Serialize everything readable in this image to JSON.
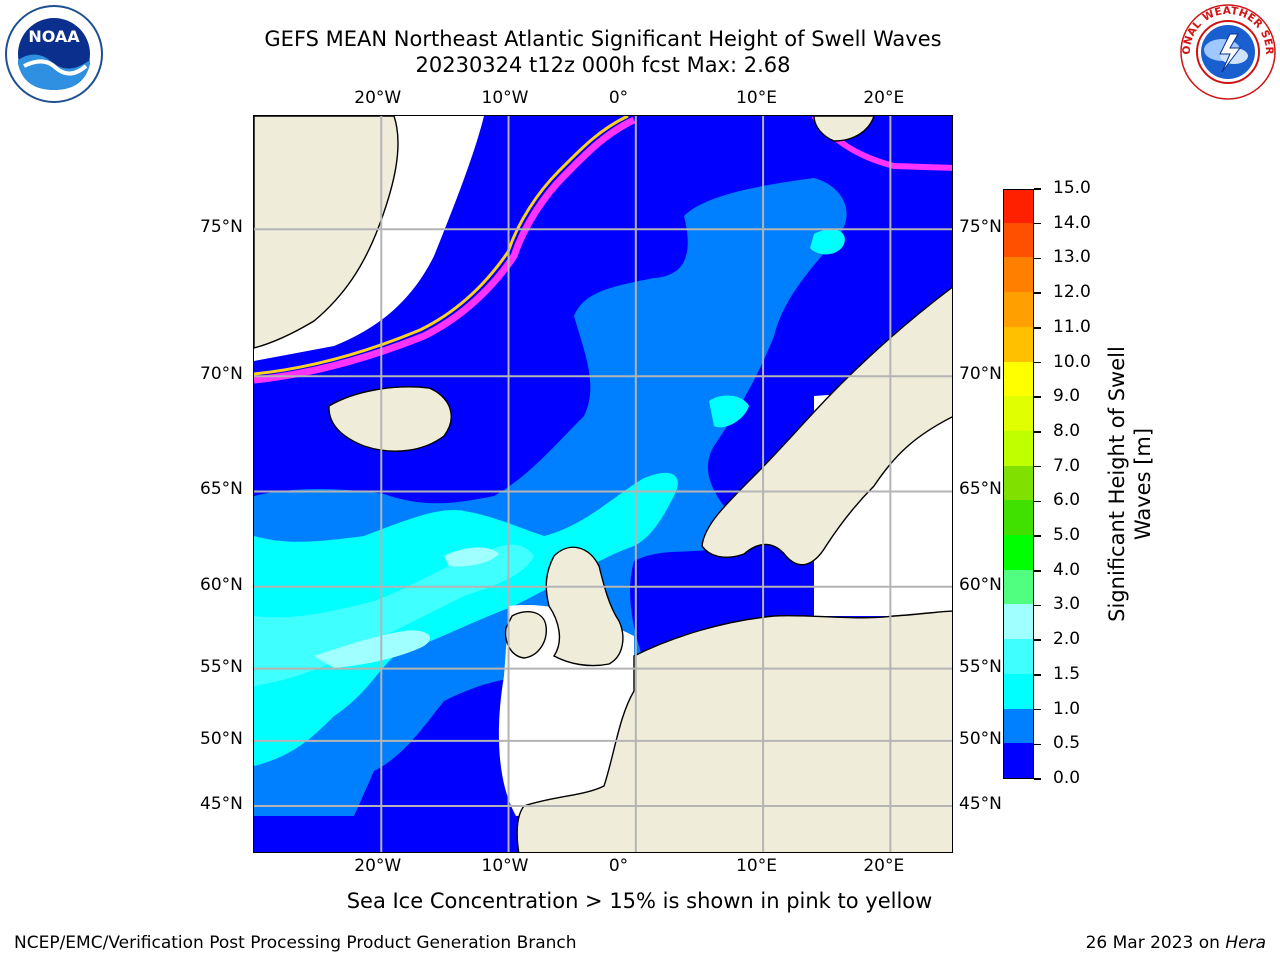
{
  "title": {
    "line1": "GEFS MEAN Northeast Atlantic Significant Height of Swell Waves",
    "line2": "20230324 t12z 000h fcst   Max: 2.68"
  },
  "logos": {
    "left": {
      "text": "NOAA",
      "icon": "noaa-logo-icon"
    },
    "right": {
      "text": "NATIONAL WEATHER SERVICE",
      "icon": "nws-logo-icon"
    }
  },
  "map": {
    "lon_range": [
      -30,
      25
    ],
    "lat_range": [
      41,
      78
    ],
    "lon_ticks": [
      {
        "value": -20,
        "label": "20°W"
      },
      {
        "value": -10,
        "label": "10°W"
      },
      {
        "value": 0,
        "label": "0°"
      },
      {
        "value": 10,
        "label": "10°E"
      },
      {
        "value": 20,
        "label": "20°E"
      }
    ],
    "lat_ticks": [
      {
        "value": 45,
        "label": "45°N"
      },
      {
        "value": 50,
        "label": "50°N"
      },
      {
        "value": 55,
        "label": "55°N"
      },
      {
        "value": 60,
        "label": "60°N"
      },
      {
        "value": 65,
        "label": "65°N"
      },
      {
        "value": 70,
        "label": "70°N"
      },
      {
        "value": 75,
        "label": "75°N"
      }
    ],
    "colors": {
      "land": "#efecda",
      "coast": "#000000",
      "grid": "#b4b4b4",
      "sea_ice": "#ff33ff",
      "sea_ice_edge": "#ffd21e",
      "no_data": "#ffffff"
    }
  },
  "colorbar": {
    "label": "Significant Height of Swell Waves [m]",
    "label_line1": "Significant Height of Swell",
    "label_line2": "Waves [m]",
    "ticks": [
      "15.0",
      "14.0",
      "13.0",
      "12.0",
      "11.0",
      "10.0",
      "9.0",
      "8.0",
      "7.0",
      "6.0",
      "5.0",
      "4.0",
      "3.0",
      "2.0",
      "1.5",
      "1.0",
      "0.5",
      "0.0"
    ],
    "colors": [
      "#0000ff",
      "#0080ff",
      "#00ffff",
      "#40ffff",
      "#a0ffff",
      "#50ff80",
      "#00ff00",
      "#40e000",
      "#80e000",
      "#c0ff00",
      "#e0ff00",
      "#ffff00",
      "#ffc000",
      "#ffa000",
      "#ff8000",
      "#ff5000",
      "#ff2000"
    ]
  },
  "note": "Sea Ice Concentration > 15% is shown in pink to yellow",
  "footer": {
    "left": "NCEP/EMC/Verification Post Processing Product Generation Branch",
    "right_prefix": "26 Mar 2023 on ",
    "right_italic": "Hera"
  }
}
